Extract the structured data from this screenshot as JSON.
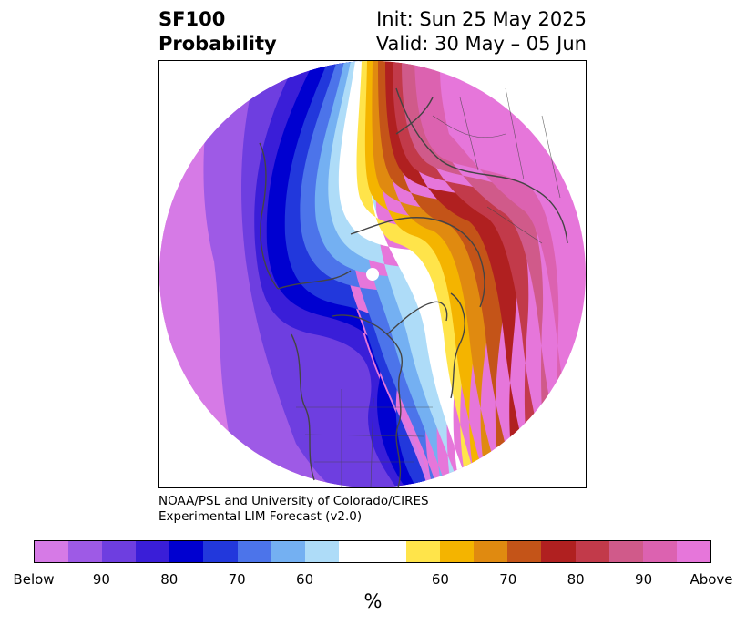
{
  "header": {
    "title_line1": "SF100",
    "title_line2": "Probability",
    "init_line": "Init: Sun 25 May 2025",
    "valid_line": "Valid: 30 May – 05 Jun"
  },
  "credit": {
    "line1": "NOAA/PSL and University of Colorado/CIRES",
    "line2": "Experimental LIM Forecast (v2.0)"
  },
  "colorbar": {
    "colors": [
      "#d67ae6",
      "#9e5ae6",
      "#6e3ee0",
      "#3a1ed8",
      "#0000d0",
      "#2238dc",
      "#4c74ea",
      "#74b0f2",
      "#aedcf8",
      "#ffffff",
      "#ffffff",
      "#ffe44a",
      "#f4b400",
      "#e08a10",
      "#c45418",
      "#b02020",
      "#c23a4a",
      "#d05a8a",
      "#dc62b0",
      "#e676da"
    ],
    "tick_labels": [
      "Below",
      "90",
      "80",
      "70",
      "60",
      "60",
      "70",
      "80",
      "90",
      "Above"
    ],
    "unit": "%"
  },
  "map": {
    "projection": "north-polar-stereographic",
    "coastline_color": "#444444",
    "pole_marker_color": "#ffffff"
  }
}
